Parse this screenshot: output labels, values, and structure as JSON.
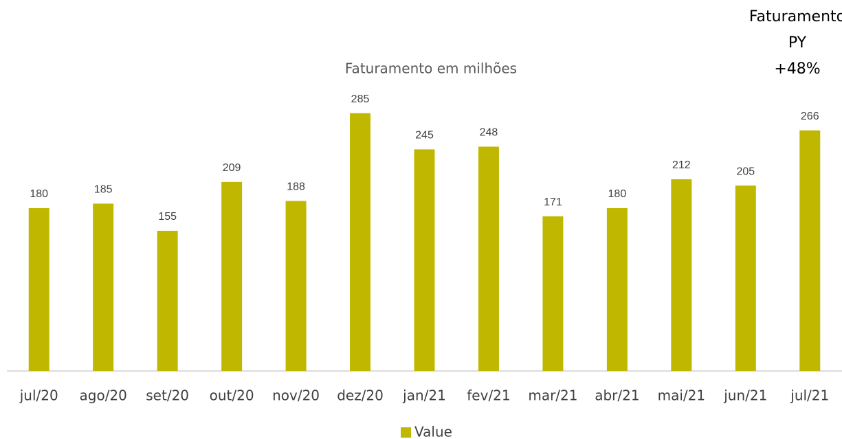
{
  "chart_data": {
    "type": "bar",
    "title": "Faturamento em milhões",
    "annotation": [
      "Faturamento",
      "PY",
      "+48%"
    ],
    "categories": [
      "jul/20",
      "ago/20",
      "set/20",
      "out/20",
      "nov/20",
      "dez/20",
      "jan/21",
      "fev/21",
      "mar/21",
      "abr/21",
      "mai/21",
      "jun/21",
      "jul/21"
    ],
    "series": [
      {
        "name": "Value",
        "color": "#c0b800",
        "values": [
          180,
          185,
          155,
          209,
          188,
          285,
          245,
          248,
          171,
          180,
          212,
          205,
          266
        ]
      }
    ],
    "ylim": [
      0,
      300
    ],
    "legend": "bottom"
  }
}
